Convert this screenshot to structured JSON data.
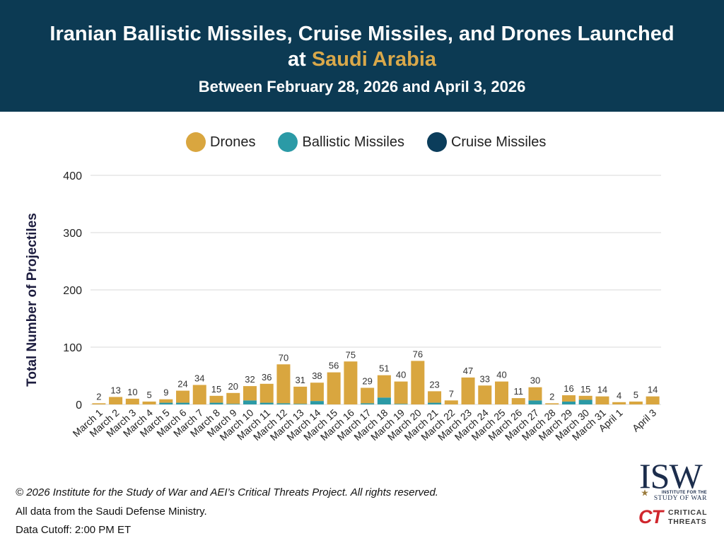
{
  "colors": {
    "header_background": "#0c3a53",
    "title_highlight": "#d9a84a"
  },
  "chart_data": {
    "type": "bar",
    "stacked": true,
    "title": {
      "line1": "Iranian Ballistic Missiles, Cruise Missiles, and Drones Launched",
      "line2": "at",
      "line2_highlight": "Saudi Arabia"
    },
    "subtitle": "Between February 28, 2026 and April 3, 2026",
    "categories": [
      "March 1",
      "March 2",
      "March 3",
      "March 4",
      "March 5",
      "March 6",
      "March 7",
      "March 8",
      "March 9",
      "March 10",
      "March 11",
      "March 12",
      "March 13",
      "March 14",
      "March 15",
      "March 16",
      "March 17",
      "March 18",
      "March 19",
      "March 20",
      "March 21",
      "March 22",
      "March 23",
      "March 24",
      "March 25",
      "March 26",
      "March 27",
      "March 28",
      "March 29",
      "March 30",
      "March 31",
      "April 1",
      "",
      "April 3"
    ],
    "series": [
      {
        "name": "Drones",
        "color": "#d9a63f",
        "values": [
          2,
          13,
          10,
          5,
          6,
          21,
          34,
          12,
          19,
          25,
          33,
          68,
          30,
          32,
          56,
          75,
          27,
          39,
          39,
          76,
          20,
          7,
          47,
          33,
          40,
          11,
          23,
          2,
          11,
          7,
          14,
          4,
          5,
          14
        ]
      },
      {
        "name": "Ballistic Missiles",
        "color": "#2b9aa6",
        "values": [
          0,
          0,
          0,
          0,
          3,
          3,
          0,
          3,
          1,
          7,
          3,
          2,
          1,
          6,
          0,
          0,
          2,
          12,
          1,
          0,
          3,
          0,
          0,
          0,
          0,
          0,
          7,
          0,
          5,
          8,
          0,
          0,
          0,
          0
        ]
      },
      {
        "name": "Cruise Missiles",
        "color": "#0b3d5b",
        "values": [
          0,
          0,
          0,
          0,
          0,
          0,
          0,
          0,
          0,
          0,
          0,
          0,
          0,
          0,
          0,
          0,
          0,
          0,
          0,
          0,
          0,
          0,
          0,
          0,
          0,
          0,
          0,
          0,
          0,
          0,
          0,
          0,
          0,
          0
        ]
      }
    ],
    "totals": [
      2,
      13,
      10,
      5,
      9,
      24,
      34,
      15,
      20,
      32,
      36,
      70,
      31,
      38,
      56,
      75,
      29,
      51,
      40,
      76,
      23,
      7,
      47,
      33,
      40,
      11,
      30,
      2,
      16,
      15,
      14,
      4,
      5,
      14
    ],
    "ylabel": "Total Number of Projectiles",
    "ylim": [
      0,
      400
    ],
    "yticks": [
      0,
      100,
      200,
      300,
      400
    ],
    "grid": true,
    "legend_position": "top"
  },
  "footer": {
    "copyright": "© 2026 Institute for the Study of War and AEI’s Critical Threats Project. All rights reserved.",
    "source": "All data from the Saudi Defense Ministry.",
    "cutoff": "Data Cutoff: 2:00 PM ET"
  },
  "logos": {
    "isw": {
      "mark": "ISW",
      "line1": "INSTITUTE FOR THE",
      "line2": "STUDY OF WAR"
    },
    "ct": {
      "mark": "CT",
      "line1": "CRITICAL",
      "line2": "THREATS"
    }
  }
}
